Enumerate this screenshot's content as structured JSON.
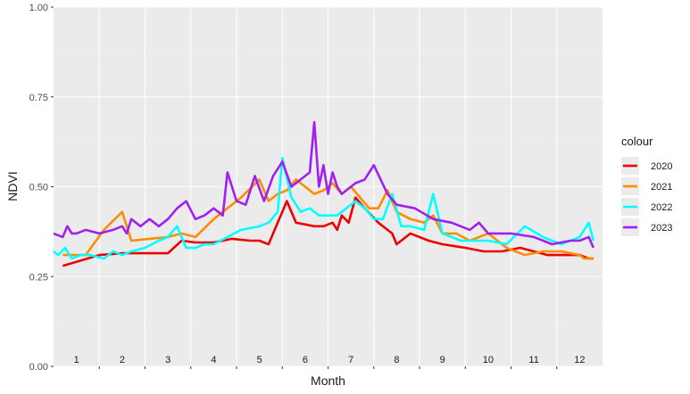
{
  "chart_data": {
    "type": "line",
    "xlabel": "Month",
    "ylabel": "NDVI",
    "ylim": [
      0,
      1
    ],
    "yticks": [
      0,
      0.25,
      0.5,
      0.75,
      1
    ],
    "ytick_labels": [
      "0.00",
      "0.25",
      "0.50",
      "0.75",
      "1.00"
    ],
    "xlim": [
      0.5,
      12.5
    ],
    "month_labels": [
      "1",
      "2",
      "3",
      "4",
      "5",
      "6",
      "7",
      "8",
      "9",
      "10",
      "11",
      "12"
    ],
    "grid": true,
    "legend": {
      "title": "colour",
      "position": "right"
    },
    "series": [
      {
        "name": "2020",
        "color": "#ee0000",
        "x": [
          0.7,
          1.5,
          2.0,
          2.6,
          3.0,
          3.3,
          3.6,
          4.0,
          4.4,
          4.8,
          5.0,
          5.2,
          5.4,
          5.6,
          5.8,
          6.0,
          6.2,
          6.4,
          6.6,
          6.7,
          6.8,
          6.95,
          7.1,
          7.3,
          7.6,
          7.9,
          8.0,
          8.3,
          8.7,
          9.0,
          9.5,
          9.9,
          10.3,
          10.7,
          11.0,
          11.3,
          11.7,
          12.0,
          12.2,
          12.3
        ],
        "y": [
          0.28,
          0.31,
          0.315,
          0.315,
          0.315,
          0.35,
          0.345,
          0.345,
          0.355,
          0.35,
          0.35,
          0.34,
          0.4,
          0.46,
          0.4,
          0.395,
          0.39,
          0.39,
          0.4,
          0.38,
          0.42,
          0.4,
          0.47,
          0.44,
          0.4,
          0.37,
          0.34,
          0.37,
          0.35,
          0.34,
          0.33,
          0.32,
          0.32,
          0.33,
          0.32,
          0.31,
          0.31,
          0.31,
          0.3,
          0.3
        ]
      },
      {
        "name": "2021",
        "color": "#ff8c00",
        "x": [
          0.7,
          1.2,
          1.6,
          2.0,
          2.2,
          2.6,
          3.0,
          3.3,
          3.6,
          4.0,
          4.2,
          4.6,
          5.0,
          5.2,
          5.4,
          5.6,
          5.8,
          6.0,
          6.2,
          6.4,
          6.6,
          6.8,
          7.0,
          7.2,
          7.4,
          7.6,
          7.8,
          8.0,
          8.3,
          8.6,
          8.8,
          9.0,
          9.3,
          9.6,
          10.0,
          10.4,
          10.8,
          11.2,
          11.6,
          12.0,
          12.1,
          12.3
        ],
        "y": [
          0.31,
          0.31,
          0.38,
          0.43,
          0.35,
          0.355,
          0.36,
          0.37,
          0.36,
          0.41,
          0.43,
          0.47,
          0.52,
          0.46,
          0.48,
          0.49,
          0.52,
          0.5,
          0.48,
          0.49,
          0.51,
          0.48,
          0.5,
          0.47,
          0.44,
          0.44,
          0.49,
          0.43,
          0.41,
          0.4,
          0.42,
          0.37,
          0.37,
          0.35,
          0.37,
          0.33,
          0.31,
          0.32,
          0.32,
          0.31,
          0.3,
          0.3
        ]
      },
      {
        "name": "2022",
        "color": "#00ffff",
        "x": [
          0.5,
          0.6,
          0.75,
          0.9,
          1.1,
          1.3,
          1.6,
          1.8,
          2.0,
          2.2,
          2.5,
          2.8,
          3.0,
          3.2,
          3.4,
          3.6,
          3.8,
          4.0,
          4.3,
          4.6,
          5.0,
          5.2,
          5.4,
          5.5,
          5.7,
          5.9,
          6.1,
          6.3,
          6.5,
          6.7,
          6.9,
          7.1,
          7.3,
          7.5,
          7.7,
          7.9,
          8.1,
          8.3,
          8.6,
          8.8,
          9.0,
          9.2,
          9.4,
          9.6,
          10.0,
          10.4,
          10.8,
          11.2,
          11.6,
          12.0,
          12.2,
          12.3
        ],
        "y": [
          0.32,
          0.31,
          0.33,
          0.3,
          0.31,
          0.31,
          0.3,
          0.32,
          0.31,
          0.32,
          0.33,
          0.35,
          0.36,
          0.39,
          0.33,
          0.33,
          0.34,
          0.34,
          0.36,
          0.38,
          0.39,
          0.4,
          0.43,
          0.58,
          0.47,
          0.43,
          0.44,
          0.42,
          0.42,
          0.42,
          0.44,
          0.46,
          0.44,
          0.41,
          0.41,
          0.48,
          0.39,
          0.39,
          0.38,
          0.48,
          0.37,
          0.36,
          0.35,
          0.35,
          0.35,
          0.34,
          0.39,
          0.36,
          0.34,
          0.36,
          0.4,
          0.35
        ]
      },
      {
        "name": "2023",
        "color": "#a020f0",
        "x": [
          0.5,
          0.7,
          0.8,
          0.9,
          1.0,
          1.2,
          1.5,
          1.8,
          2.0,
          2.1,
          2.2,
          2.4,
          2.5,
          2.6,
          2.8,
          2.9,
          3.0,
          3.2,
          3.4,
          3.6,
          3.8,
          4.0,
          4.2,
          4.3,
          4.5,
          4.7,
          4.9,
          5.1,
          5.3,
          5.5,
          5.7,
          5.9,
          6.0,
          6.1,
          6.2,
          6.3,
          6.4,
          6.5,
          6.6,
          6.7,
          6.8,
          6.9,
          7.0,
          7.1,
          7.3,
          7.5,
          7.8,
          8.0,
          8.4,
          8.8,
          9.2,
          9.6,
          9.8,
          10.0,
          10.5,
          11.0,
          11.4,
          11.8,
          12.0,
          12.2,
          12.3
        ],
        "y": [
          0.37,
          0.36,
          0.39,
          0.37,
          0.37,
          0.38,
          0.37,
          0.38,
          0.39,
          0.37,
          0.41,
          0.39,
          0.4,
          0.41,
          0.39,
          0.4,
          0.41,
          0.44,
          0.46,
          0.41,
          0.42,
          0.44,
          0.42,
          0.54,
          0.46,
          0.45,
          0.53,
          0.46,
          0.53,
          0.57,
          0.5,
          0.52,
          0.53,
          0.54,
          0.68,
          0.5,
          0.56,
          0.48,
          0.54,
          0.5,
          0.48,
          0.49,
          0.5,
          0.51,
          0.52,
          0.56,
          0.48,
          0.45,
          0.44,
          0.41,
          0.4,
          0.38,
          0.4,
          0.37,
          0.37,
          0.36,
          0.34,
          0.35,
          0.35,
          0.36,
          0.33
        ]
      }
    ]
  }
}
